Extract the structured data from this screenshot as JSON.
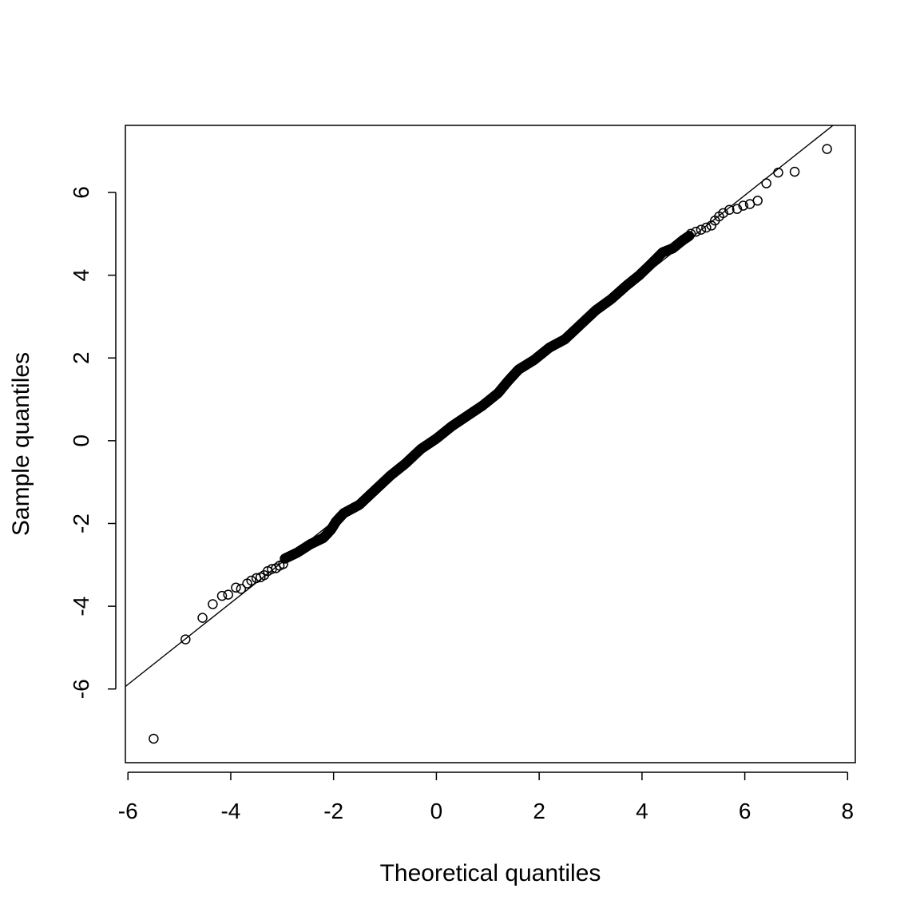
{
  "chart_data": {
    "type": "scatter",
    "title": "",
    "xlabel": "Theoretical quantiles",
    "ylabel": "Sample quantiles",
    "xlim": [
      -6.05,
      8.15
    ],
    "ylim": [
      -7.78,
      7.62
    ],
    "xticks": [
      -6,
      -4,
      -2,
      0,
      2,
      4,
      6,
      8
    ],
    "xtick_labels": [
      "-6",
      "-4",
      "-2",
      "0",
      "2",
      "4",
      "6",
      "8"
    ],
    "yticks": [
      -6,
      -4,
      -2,
      0,
      2,
      4,
      6
    ],
    "ytick_labels": [
      "-6",
      "-4",
      "-2",
      "0",
      "2",
      "4",
      "6"
    ],
    "grid": false,
    "legend": "none",
    "marker": "open-circle",
    "reference_line": {
      "intercept": 0.02,
      "slope": 0.985
    },
    "outliers": [
      {
        "x": -5.5,
        "y": -7.2
      },
      {
        "x": -4.88,
        "y": -4.8
      },
      {
        "x": -4.55,
        "y": -4.28
      },
      {
        "x": -4.35,
        "y": -3.95
      },
      {
        "x": -4.17,
        "y": -3.75
      },
      {
        "x": -4.05,
        "y": -3.72
      },
      {
        "x": -3.9,
        "y": -3.55
      },
      {
        "x": -3.8,
        "y": -3.58
      },
      {
        "x": -3.68,
        "y": -3.45
      },
      {
        "x": -3.6,
        "y": -3.38
      },
      {
        "x": -3.5,
        "y": -3.32
      },
      {
        "x": -3.42,
        "y": -3.3
      },
      {
        "x": -3.35,
        "y": -3.25
      },
      {
        "x": -3.28,
        "y": -3.15
      },
      {
        "x": -3.2,
        "y": -3.1
      },
      {
        "x": -3.12,
        "y": -3.08
      },
      {
        "x": -3.05,
        "y": -3.02
      },
      {
        "x": -2.98,
        "y": -2.98
      },
      {
        "x": 4.95,
        "y": 5.0
      },
      {
        "x": 5.05,
        "y": 5.05
      },
      {
        "x": 5.15,
        "y": 5.1
      },
      {
        "x": 5.25,
        "y": 5.15
      },
      {
        "x": 5.35,
        "y": 5.2
      },
      {
        "x": 5.42,
        "y": 5.32
      },
      {
        "x": 5.5,
        "y": 5.42
      },
      {
        "x": 5.58,
        "y": 5.5
      },
      {
        "x": 5.7,
        "y": 5.58
      },
      {
        "x": 5.85,
        "y": 5.6
      },
      {
        "x": 5.97,
        "y": 5.68
      },
      {
        "x": 6.1,
        "y": 5.72
      },
      {
        "x": 6.25,
        "y": 5.8
      },
      {
        "x": 6.42,
        "y": 6.22
      },
      {
        "x": 6.65,
        "y": 6.48
      },
      {
        "x": 6.97,
        "y": 6.5
      },
      {
        "x": 7.6,
        "y": 7.05
      }
    ],
    "dense_curve": [
      {
        "x": -2.95,
        "y": -2.85
      },
      {
        "x": -2.7,
        "y": -2.7
      },
      {
        "x": -2.45,
        "y": -2.5
      },
      {
        "x": -2.2,
        "y": -2.35
      },
      {
        "x": -2.05,
        "y": -2.15
      },
      {
        "x": -1.95,
        "y": -1.95
      },
      {
        "x": -1.8,
        "y": -1.75
      },
      {
        "x": -1.5,
        "y": -1.55
      },
      {
        "x": -1.2,
        "y": -1.2
      },
      {
        "x": -0.9,
        "y": -0.85
      },
      {
        "x": -0.6,
        "y": -0.55
      },
      {
        "x": -0.3,
        "y": -0.2
      },
      {
        "x": 0.0,
        "y": 0.05
      },
      {
        "x": 0.3,
        "y": 0.35
      },
      {
        "x": 0.6,
        "y": 0.6
      },
      {
        "x": 0.9,
        "y": 0.85
      },
      {
        "x": 1.2,
        "y": 1.15
      },
      {
        "x": 1.4,
        "y": 1.45
      },
      {
        "x": 1.6,
        "y": 1.72
      },
      {
        "x": 1.9,
        "y": 1.95
      },
      {
        "x": 2.2,
        "y": 2.25
      },
      {
        "x": 2.5,
        "y": 2.45
      },
      {
        "x": 2.8,
        "y": 2.8
      },
      {
        "x": 3.1,
        "y": 3.15
      },
      {
        "x": 3.4,
        "y": 3.42
      },
      {
        "x": 3.7,
        "y": 3.75
      },
      {
        "x": 3.95,
        "y": 4.0
      },
      {
        "x": 4.2,
        "y": 4.3
      },
      {
        "x": 4.4,
        "y": 4.55
      },
      {
        "x": 4.6,
        "y": 4.65
      },
      {
        "x": 4.8,
        "y": 4.85
      },
      {
        "x": 4.92,
        "y": 4.95
      }
    ]
  }
}
